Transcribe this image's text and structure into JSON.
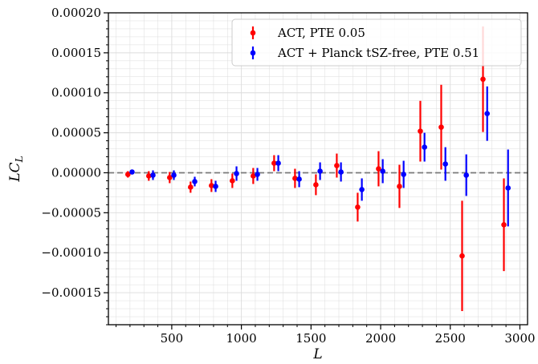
{
  "chart_data": {
    "type": "scatter",
    "title": "",
    "xlabel": "L",
    "ylabel_main": "LC",
    "ylabel_sub": "L",
    "xlim": [
      45,
      3055
    ],
    "ylim": [
      -0.00019,
      0.0002
    ],
    "x_ticks": [
      500,
      1000,
      1500,
      2000,
      2500,
      3000
    ],
    "x_tick_labels": [
      "500",
      "1000",
      "1500",
      "2000",
      "2500",
      "3000"
    ],
    "y_ticks": [
      -0.00015,
      -0.0001,
      -5e-05,
      0,
      5e-05,
      0.0001,
      0.00015,
      0.0002
    ],
    "y_tick_labels": [
      "−0.00015",
      "−0.00010",
      "−0.00005",
      "0.00000",
      "0.00005",
      "0.00010",
      "0.00015",
      "0.00020"
    ],
    "reference_line_y": 0,
    "grid": true,
    "legend_position": "top-right",
    "series": [
      {
        "name": "ACT, PTE 0.05",
        "color": "#ff0000",
        "x": [
          185,
          335,
          485,
          635,
          785,
          935,
          1085,
          1235,
          1385,
          1535,
          1685,
          1835,
          1985,
          2135,
          2285,
          2435,
          2585,
          2735,
          2885
        ],
        "y": [
          -2e-06,
          -4e-06,
          -6e-06,
          -1.8e-05,
          -1.6e-05,
          -1e-05,
          -4e-06,
          1.2e-05,
          -7e-06,
          -1.5e-05,
          9e-06,
          -4.3e-05,
          5e-06,
          -1.7e-05,
          5.2e-05,
          5.7e-05,
          -0.000104,
          0.000117,
          -6.5e-05
        ],
        "yerr": [
          4e-06,
          6e-06,
          7e-06,
          7e-06,
          8e-06,
          9e-06,
          1e-05,
          1e-05,
          1.2e-05,
          1.3e-05,
          1.5e-05,
          1.8e-05,
          2.2e-05,
          2.7e-05,
          3.8e-05,
          5.3e-05,
          6.9e-05,
          6.6e-05,
          5.8e-05
        ]
      },
      {
        "name": "ACT + Planck tSZ-free, PTE 0.51",
        "color": "#0000ff",
        "x": [
          215,
          365,
          515,
          665,
          815,
          965,
          1115,
          1265,
          1415,
          1565,
          1715,
          1865,
          2015,
          2165,
          2315,
          2465,
          2615,
          2765,
          2915
        ],
        "y": [
          1e-06,
          -3e-06,
          -3e-06,
          -1.1e-05,
          -1.7e-05,
          -1e-06,
          -2e-06,
          1.2e-05,
          -8e-06,
          2e-06,
          1e-06,
          -2.1e-05,
          2e-06,
          -2e-06,
          3.2e-05,
          1.1e-05,
          -3e-06,
          7.4e-05,
          -1.9e-05
        ],
        "yerr": [
          3e-06,
          6e-06,
          6e-06,
          6e-06,
          7e-06,
          9e-06,
          8e-06,
          1e-05,
          1e-05,
          1.1e-05,
          1.2e-05,
          1.4e-05,
          1.5e-05,
          1.7e-05,
          1.8e-05,
          2.1e-05,
          2.6e-05,
          3.4e-05,
          4.8e-05
        ]
      }
    ]
  }
}
